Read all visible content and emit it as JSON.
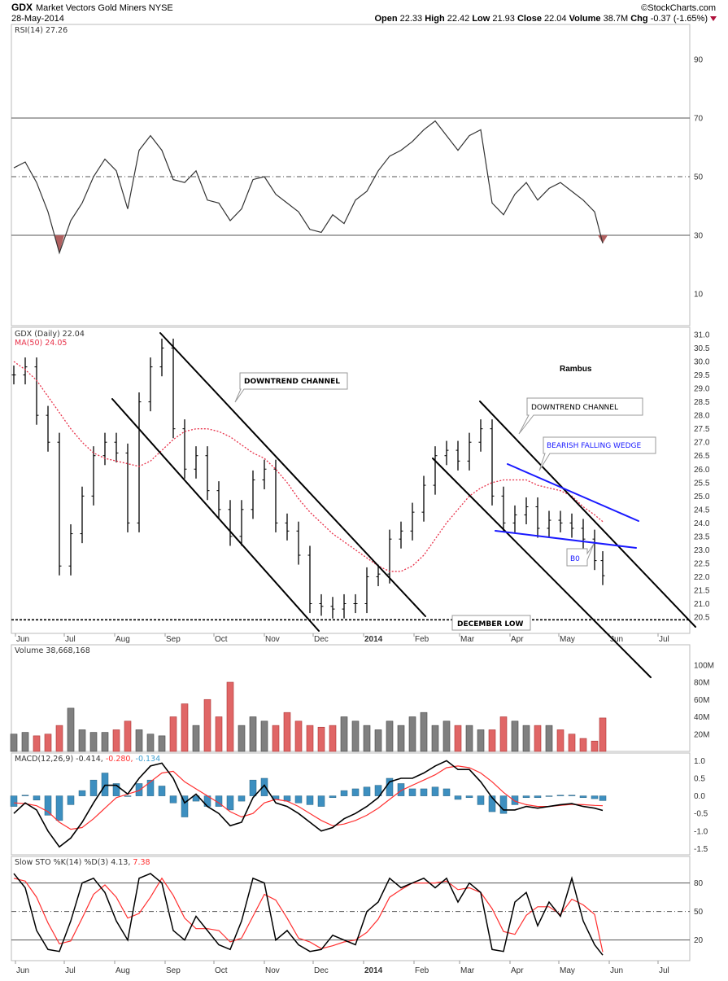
{
  "header": {
    "symbol": "GDX",
    "name": "Market Vectors Gold Miners NYSE",
    "date": "28-May-2014",
    "copyright": "©StockCharts.com",
    "open_label": "Open",
    "open": "22.33",
    "high_label": "High",
    "high": "22.42",
    "low_label": "Low",
    "low": "21.93",
    "close_label": "Close",
    "close": "22.04",
    "volume_label": "Volume",
    "volume": "38.7M",
    "chg_label": "Chg",
    "chg": "-0.37 (-1.65%)"
  },
  "legends": {
    "rsi": "RSI(14) 27.26",
    "price": "GDX (Daily) 22.04",
    "ma": "MA(50) 24.05",
    "volume": "Volume 38,668,168",
    "macd_main": "MACD(12,26,9) -0.414,",
    "macd_signal": " -0.280,",
    "macd_hist": " -0.134",
    "sto_main": "Slow STO %K(14) %D(3) 4.13,",
    "sto_d": " 7.38"
  },
  "annotations": {
    "author": "Rambus",
    "channel1": "DOWNTREND CHANNEL",
    "channel2": "DOWNTREND CHANNEL",
    "wedge": "BEARISH FALLING WEDGE",
    "breakout": "B0",
    "december_low": "DECEMBER LOW"
  },
  "colors": {
    "up_volume": "#808080",
    "down_volume": "#e06666",
    "ma": "#e8324a",
    "macd_signal": "#ff3030",
    "macd_hist": "#3d8fc0",
    "sto_d": "#ff3030",
    "wedge": "#1a1aff",
    "rsi_oversold_fill": "#b06060"
  },
  "chart_data": {
    "type": "line",
    "x_axis": {
      "months": [
        {
          "date": "2013-06-01",
          "label": "Jun"
        },
        {
          "date": "2013-07-01",
          "label": "Jul"
        },
        {
          "date": "2013-08-01",
          "label": "Aug"
        },
        {
          "date": "2013-09-01",
          "label": "Sep"
        },
        {
          "date": "2013-10-01",
          "label": "Oct"
        },
        {
          "date": "2013-11-01",
          "label": "Nov"
        },
        {
          "date": "2013-12-01",
          "label": "Dec"
        },
        {
          "date": "2014-01-01",
          "label": "2014"
        },
        {
          "date": "2014-02-01",
          "label": "Feb"
        },
        {
          "date": "2014-03-01",
          "label": "Mar"
        },
        {
          "date": "2014-04-01",
          "label": "Apr"
        },
        {
          "date": "2014-05-01",
          "label": "May"
        },
        {
          "date": "2014-06-01",
          "label": "Jun"
        },
        {
          "date": "2014-07-01",
          "label": "Jul"
        }
      ]
    },
    "dates": [
      "2013-05-31",
      "2013-06-07",
      "2013-06-14",
      "2013-06-21",
      "2013-06-28",
      "2013-07-05",
      "2013-07-12",
      "2013-07-19",
      "2013-07-26",
      "2013-08-02",
      "2013-08-09",
      "2013-08-16",
      "2013-08-23",
      "2013-08-30",
      "2013-09-06",
      "2013-09-13",
      "2013-09-20",
      "2013-09-27",
      "2013-10-04",
      "2013-10-11",
      "2013-10-18",
      "2013-10-25",
      "2013-11-01",
      "2013-11-08",
      "2013-11-15",
      "2013-11-22",
      "2013-11-29",
      "2013-12-06",
      "2013-12-13",
      "2013-12-20",
      "2013-12-27",
      "2014-01-03",
      "2014-01-10",
      "2014-01-17",
      "2014-01-24",
      "2014-01-31",
      "2014-02-07",
      "2014-02-14",
      "2014-02-21",
      "2014-02-28",
      "2014-03-07",
      "2014-03-14",
      "2014-03-21",
      "2014-03-28",
      "2014-04-04",
      "2014-04-11",
      "2014-04-18",
      "2014-04-25",
      "2014-05-02",
      "2014-05-09",
      "2014-05-16",
      "2014-05-23",
      "2014-05-28"
    ],
    "rsi": {
      "values": [
        53,
        55,
        48,
        38,
        24,
        35,
        41,
        50,
        56,
        52,
        39,
        59,
        64,
        59,
        49,
        48,
        52,
        42,
        41,
        35,
        39,
        49,
        50,
        44,
        41,
        38,
        32,
        31,
        37,
        34,
        42,
        45,
        52,
        57,
        59,
        62,
        66,
        69,
        64,
        59,
        64,
        66,
        41,
        37,
        44,
        48,
        42,
        46,
        48,
        45,
        42,
        38,
        27.26
      ],
      "ticks": [
        10,
        30,
        50,
        70,
        90
      ],
      "ylim": [
        0,
        100
      ],
      "levels": [
        30,
        50,
        70
      ]
    },
    "price": {
      "close": [
        29.5,
        29.8,
        28.0,
        27.0,
        22.4,
        23.6,
        25.0,
        26.5,
        27.0,
        26.6,
        24.0,
        28.5,
        29.8,
        30.5,
        27.5,
        26.0,
        26.5,
        25.2,
        24.5,
        23.5,
        24.5,
        25.6,
        26.0,
        24.0,
        23.7,
        22.8,
        21.0,
        20.9,
        20.8,
        21.0,
        21.0,
        22.0,
        22.1,
        23.4,
        23.7,
        24.4,
        25.4,
        26.5,
        26.7,
        26.3,
        27.0,
        27.5,
        25.0,
        24.0,
        24.3,
        24.6,
        23.8,
        24.1,
        24.0,
        23.8,
        23.4,
        22.6,
        22.04
      ],
      "ma50": [
        30.0,
        29.7,
        29.3,
        28.7,
        28.1,
        27.5,
        27.0,
        26.6,
        26.4,
        26.3,
        26.2,
        26.1,
        26.3,
        26.7,
        27.1,
        27.4,
        27.5,
        27.5,
        27.4,
        27.2,
        26.9,
        26.6,
        26.4,
        26.0,
        25.5,
        24.9,
        24.4,
        24.0,
        23.6,
        23.3,
        23.0,
        22.7,
        22.4,
        22.2,
        22.2,
        22.4,
        22.8,
        23.4,
        24.0,
        24.5,
        25.0,
        25.3,
        25.5,
        25.6,
        25.6,
        25.6,
        25.4,
        25.3,
        25.2,
        25.0,
        24.6,
        24.3,
        24.05
      ],
      "ticks": [
        20.5,
        21.0,
        21.5,
        22.0,
        22.5,
        23.0,
        23.5,
        24.0,
        24.5,
        25.0,
        25.5,
        26.0,
        26.5,
        27.0,
        27.5,
        28.0,
        28.5,
        29.0,
        29.5,
        30.0,
        30.5,
        31.0
      ],
      "december_low": 20.4
    },
    "volume_millions": {
      "values": [
        20,
        22,
        18,
        20,
        30,
        50,
        25,
        22,
        22,
        25,
        35,
        25,
        20,
        18,
        40,
        55,
        30,
        60,
        40,
        80,
        30,
        40,
        35,
        30,
        45,
        35,
        30,
        28,
        30,
        40,
        35,
        30,
        25,
        35,
        30,
        40,
        45,
        30,
        35,
        30,
        30,
        25,
        25,
        40,
        35,
        30,
        30,
        30,
        25,
        20,
        15,
        12,
        38.67
      ],
      "ticks": [
        20,
        40,
        60,
        80,
        100
      ],
      "tick_labels": [
        "20M",
        "40M",
        "60M",
        "80M",
        "100M"
      ]
    },
    "macd": {
      "macd": [
        -0.5,
        -0.2,
        -0.4,
        -1.0,
        -1.45,
        -1.2,
        -0.75,
        -0.2,
        0.3,
        0.3,
        0.05,
        0.5,
        0.85,
        0.93,
        0.5,
        -0.2,
        0.05,
        -0.3,
        -0.5,
        -0.85,
        -0.75,
        -0.05,
        0.3,
        -0.2,
        -0.3,
        -0.5,
        -0.75,
        -1.0,
        -0.9,
        -0.65,
        -0.5,
        -0.3,
        -0.05,
        0.4,
        0.5,
        0.5,
        0.65,
        0.85,
        1.0,
        0.75,
        0.75,
        0.4,
        -0.05,
        -0.4,
        -0.4,
        -0.3,
        -0.35,
        -0.3,
        -0.25,
        -0.22,
        -0.3,
        -0.35,
        -0.414
      ],
      "signal": [
        -0.2,
        -0.22,
        -0.28,
        -0.45,
        -0.75,
        -0.95,
        -0.9,
        -0.65,
        -0.35,
        -0.05,
        0.05,
        0.15,
        0.4,
        0.65,
        0.7,
        0.4,
        0.2,
        0.0,
        -0.2,
        -0.45,
        -0.6,
        -0.5,
        -0.2,
        -0.1,
        -0.15,
        -0.3,
        -0.5,
        -0.7,
        -0.85,
        -0.8,
        -0.7,
        -0.55,
        -0.35,
        -0.1,
        0.15,
        0.3,
        0.45,
        0.6,
        0.8,
        0.85,
        0.8,
        0.65,
        0.4,
        0.1,
        -0.15,
        -0.25,
        -0.3,
        -0.3,
        -0.27,
        -0.24,
        -0.25,
        -0.27,
        -0.28
      ],
      "ticks": [
        -1.5,
        -1.0,
        -0.5,
        0.0,
        0.5,
        1.0
      ],
      "tick_labels": [
        "-1.5",
        "-1.0",
        "-0.5",
        "0.0",
        "0.5",
        "1.0"
      ]
    },
    "sto": {
      "k": [
        90,
        75,
        30,
        10,
        8,
        40,
        80,
        85,
        70,
        40,
        20,
        85,
        90,
        80,
        30,
        20,
        45,
        30,
        15,
        10,
        40,
        85,
        80,
        20,
        30,
        15,
        8,
        10,
        25,
        20,
        15,
        50,
        60,
        85,
        75,
        80,
        85,
        75,
        85,
        60,
        80,
        70,
        10,
        8,
        60,
        70,
        35,
        60,
        45,
        85,
        40,
        15,
        4.13
      ],
      "d": [
        85,
        82,
        65,
        38,
        16,
        19,
        43,
        68,
        78,
        65,
        43,
        48,
        65,
        85,
        67,
        43,
        32,
        32,
        30,
        18,
        22,
        45,
        68,
        62,
        43,
        22,
        18,
        11,
        14,
        18,
        20,
        28,
        42,
        65,
        73,
        80,
        80,
        80,
        82,
        73,
        75,
        70,
        53,
        29,
        26,
        46,
        55,
        55,
        47,
        63,
        57,
        47,
        7.38
      ],
      "ticks": [
        20,
        50,
        80
      ],
      "levels": [
        20,
        50,
        80
      ]
    }
  }
}
